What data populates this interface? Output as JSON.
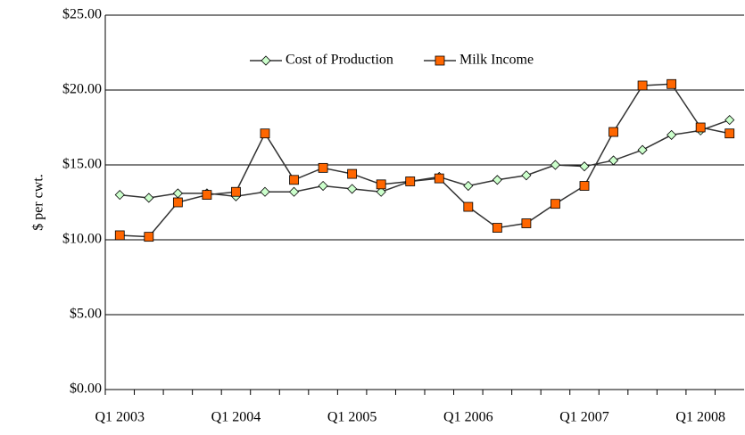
{
  "chart_data": {
    "type": "line",
    "y_label": "$ per cwt.",
    "categories": [
      "Q1 2003",
      null,
      null,
      null,
      "Q1 2004",
      null,
      null,
      null,
      "Q1 2005",
      null,
      null,
      null,
      "Q1 2006",
      null,
      null,
      null,
      "Q1 2007",
      null,
      null,
      null,
      "Q1 2008",
      null
    ],
    "series": [
      {
        "name": "Cost of Production",
        "color": "#ccffcc",
        "marker": "diamond",
        "values": [
          13.0,
          12.8,
          13.1,
          13.1,
          12.9,
          13.2,
          13.2,
          13.6,
          13.4,
          13.2,
          13.9,
          14.2,
          13.6,
          14.0,
          14.3,
          15.0,
          14.9,
          15.3,
          16.0,
          17.0,
          17.3,
          18.0
        ]
      },
      {
        "name": "Milk Income",
        "color": "#ff6600",
        "marker": "square",
        "values": [
          10.3,
          10.2,
          12.5,
          13.0,
          13.2,
          17.1,
          14.0,
          14.8,
          14.4,
          13.7,
          13.9,
          14.1,
          12.2,
          10.8,
          11.1,
          12.4,
          13.6,
          17.2,
          20.3,
          20.4,
          17.5,
          17.1
        ]
      }
    ],
    "ylim": [
      0,
      25
    ],
    "yticks": [
      {
        "value": 0,
        "label": "$0.00"
      },
      {
        "value": 5,
        "label": "$5.00"
      },
      {
        "value": 10,
        "label": "$10.00"
      },
      {
        "value": 15,
        "label": "$15.00"
      },
      {
        "value": 20,
        "label": "$20.00"
      },
      {
        "value": 25,
        "label": "$25.00"
      }
    ],
    "grid": true,
    "legend": "top"
  }
}
